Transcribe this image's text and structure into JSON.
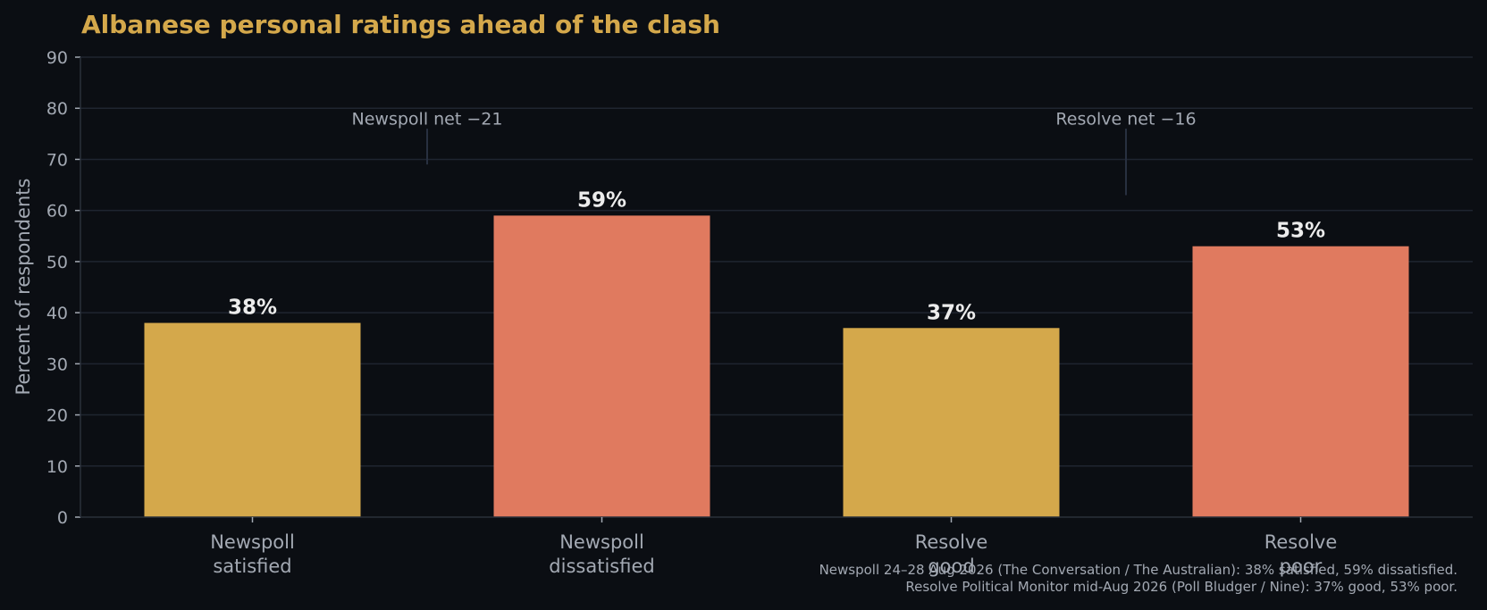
{
  "chart_data": {
    "type": "bar",
    "title": "Albanese personal ratings ahead of the clash",
    "ylabel": "Percent of respondents",
    "xlabel": "",
    "ylim": [
      0,
      90
    ],
    "yticks": [
      0,
      10,
      20,
      30,
      40,
      50,
      60,
      70,
      80,
      90
    ],
    "grid": true,
    "categories": [
      [
        "Newspoll",
        "satisfied"
      ],
      [
        "Newspoll",
        "dissatisfied"
      ],
      [
        "Resolve",
        "good"
      ],
      [
        "Resolve",
        "poor"
      ]
    ],
    "values": [
      38,
      59,
      37,
      53
    ],
    "value_labels": [
      "38%",
      "59%",
      "37%",
      "53%"
    ],
    "bar_colors": [
      "#d4a84b",
      "#e07a5f",
      "#d4a84b",
      "#e07a5f"
    ],
    "annotations": [
      {
        "text": "Newspoll net −21",
        "between": [
          0,
          1
        ],
        "y": 78,
        "line_from": 76,
        "line_to": 69
      },
      {
        "text": "Resolve net −16",
        "between": [
          2,
          3
        ],
        "y": 78,
        "line_from": 76,
        "line_to": 63
      }
    ],
    "footnote": [
      "Newspoll 24–28 Aug 2026 (The Conversation / The Australian): 38% satisfied, 59% dissatisfied.",
      "Resolve Political Monitor mid-Aug 2026 (Poll Bludger / Nine): 37% good, 53% poor."
    ]
  }
}
